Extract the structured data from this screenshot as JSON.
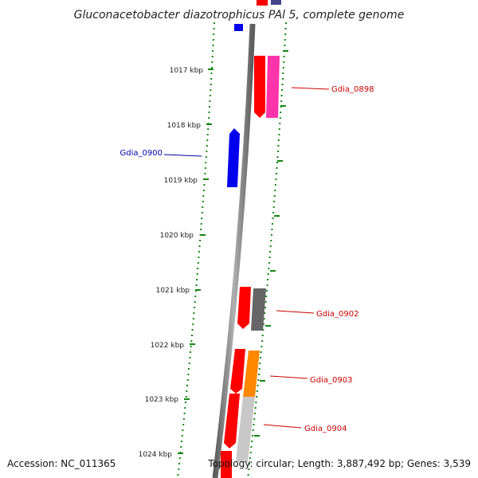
{
  "title": "Gluconacetobacter diazotrophicus PAl 5, complete genome",
  "footer": {
    "accession": "Accession: NC_011365",
    "info": "Topology: circular; Length: 3,887,492 bp; Genes: 3,539"
  },
  "ticks": [
    "1017 kbp",
    "1018 kbp",
    "1019 kbp",
    "1020 kbp",
    "1021 kbp",
    "1022 kbp",
    "1023 kbp",
    "1024 kbp"
  ],
  "gene_labels": [
    {
      "id": "g0898",
      "text": "Gdia_0898",
      "color": "#cc0000"
    },
    {
      "id": "g0900",
      "text": "Gdia_0900",
      "color": "#0000aa"
    },
    {
      "id": "g0902",
      "text": "Gdia_0902",
      "color": "#cc0000"
    },
    {
      "id": "g0903",
      "text": "Gdia_0903",
      "color": "#cc0000"
    },
    {
      "id": "g0904",
      "text": "Gdia_0904",
      "color": "#cc0000"
    }
  ],
  "colors": {
    "tick_green": "#118811",
    "backbone": "#888888",
    "gene_red": "#ff0000",
    "gene_pink": "#ff33aa",
    "gene_blue": "#0000ee",
    "gene_gray": "#666666",
    "gene_orange": "#ff8800",
    "gene_lightgray": "#c8c8c8",
    "gene_navy": "#444488"
  }
}
